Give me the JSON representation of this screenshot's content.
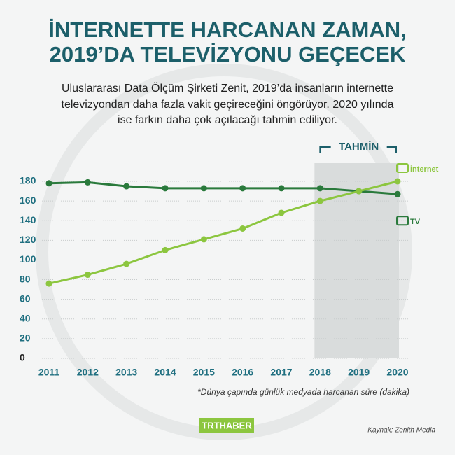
{
  "chart_data": {
    "type": "line",
    "title": [
      "İNTERNETTE HARCANAN ZAMAN,",
      "2019’DA TELEVİZYONU GEÇECEK"
    ],
    "subtitle": [
      "Uluslararası Data Ölçüm Şirketi Zenit, 2019’da insanların internette",
      "televizyondan daha fazla vakit geçireceğini öngörüyor. 2020 yılında",
      "ise farkın daha çok açılacağı tahmin ediliyor."
    ],
    "categories": [
      "2011",
      "2012",
      "2013",
      "2014",
      "2015",
      "2016",
      "2017",
      "2018",
      "2019",
      "2020"
    ],
    "series": [
      {
        "name": "TV",
        "color": "#2a7a3c",
        "values": [
          178,
          179,
          175,
          173,
          173,
          173,
          173,
          173,
          170,
          167
        ]
      },
      {
        "name": "İnternet",
        "color": "#8cc63f",
        "values": [
          76,
          85,
          96,
          110,
          121,
          132,
          148,
          160,
          170,
          180
        ]
      }
    ],
    "ylim": [
      0,
      180
    ],
    "yticks": [
      0,
      20,
      40,
      60,
      80,
      100,
      120,
      140,
      160,
      180
    ],
    "grid": true,
    "forecast_label": "TAHMİN",
    "forecast_from": "2018",
    "footnote": "*Dünya çapında günlük medyada harcanan süre (dakika)",
    "logo": "TRTHABER",
    "source": "Kaynak: Zenith Media"
  }
}
